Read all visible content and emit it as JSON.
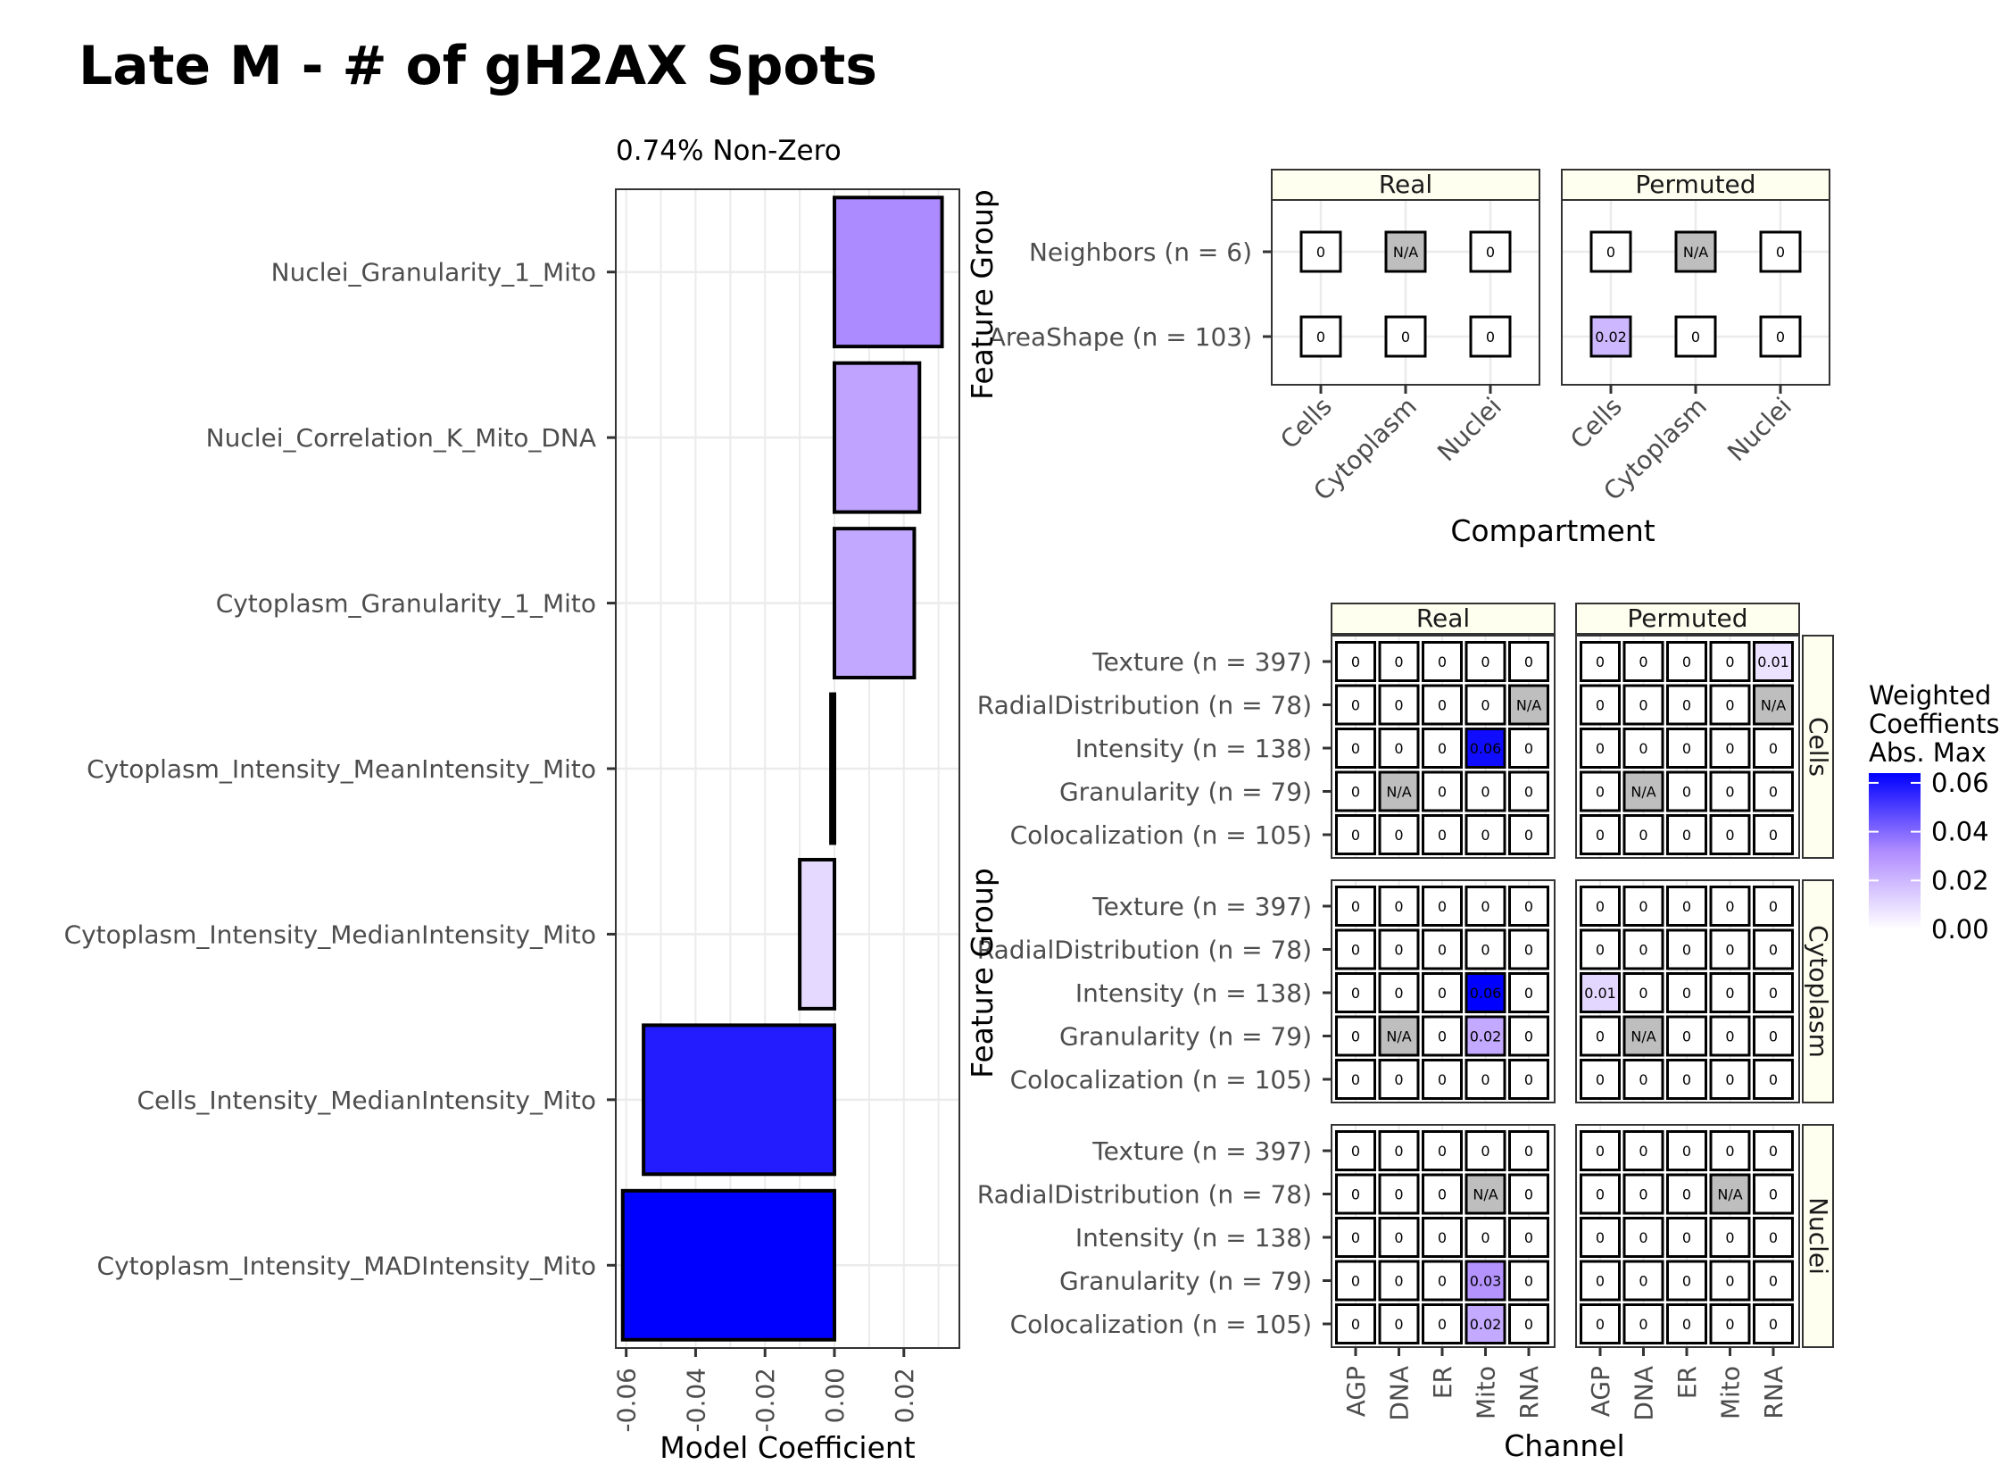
{
  "title": "Late M - # of gH2AX Spots",
  "colors": {
    "low": "#ffffff",
    "high": "#0000ff",
    "na": "#bebebe",
    "strip_bg": "#fffff0"
  },
  "chart_data": [
    {
      "type": "bar",
      "subtitle": "0.74% Non-Zero",
      "xlabel": "Model Coefficient",
      "orientation": "horizontal",
      "xlim": [
        -0.063,
        0.036
      ],
      "xticks": [
        -0.06,
        -0.04,
        -0.02,
        0.0,
        0.02
      ],
      "xtick_labels": [
        "-0.06",
        "-0.04",
        "-0.02",
        "0.00",
        "0.02"
      ],
      "categories": [
        "Nuclei_Granularity_1_Mito",
        "Nuclei_Correlation_K_Mito_DNA",
        "Cytoplasm_Granularity_1_Mito",
        "Cytoplasm_Intensity_MeanIntensity_Mito",
        "Cytoplasm_Intensity_MedianIntensity_Mito",
        "Cells_Intensity_MedianIntensity_Mito",
        "Cytoplasm_Intensity_MADIntensity_Mito"
      ],
      "values": [
        0.031,
        0.0245,
        0.023,
        -0.001,
        -0.01,
        -0.055,
        -0.061
      ],
      "color_max": 0.061
    },
    {
      "type": "heatmap",
      "xlabel": "Compartment",
      "ylabel": "Feature Group",
      "facets": [
        "Real",
        "Permuted"
      ],
      "columns": [
        "Cells",
        "Cytoplasm",
        "Nuclei"
      ],
      "rows": [
        "Neighbors (n = 6)",
        "AreaShape (n = 103)"
      ],
      "values": {
        "Real": [
          [
            "0",
            "N/A",
            "0"
          ],
          [
            "0",
            "0",
            "0"
          ]
        ],
        "Permuted": [
          [
            "0",
            "N/A",
            "0"
          ],
          [
            "0.02",
            "0",
            "0"
          ]
        ]
      }
    },
    {
      "type": "heatmap",
      "xlabel": "Channel",
      "ylabel": "Feature Group",
      "facets": [
        "Real",
        "Permuted"
      ],
      "row_facets": [
        "Cells",
        "Cytoplasm",
        "Nuclei"
      ],
      "columns": [
        "AGP",
        "DNA",
        "ER",
        "Mito",
        "RNA"
      ],
      "rows": [
        "Texture (n = 397)",
        "RadialDistribution (n = 78)",
        "Intensity (n = 138)",
        "Granularity (n = 79)",
        "Colocalization (n = 105)"
      ],
      "values": {
        "Cells": {
          "Real": [
            [
              "0",
              "0",
              "0",
              "0",
              "0"
            ],
            [
              "0",
              "0",
              "0",
              "0",
              "N/A"
            ],
            [
              "0",
              "0",
              "0",
              "0.06",
              "0"
            ],
            [
              "0",
              "N/A",
              "0",
              "0",
              "0"
            ],
            [
              "0",
              "0",
              "0",
              "0",
              "0"
            ]
          ],
          "Permuted": [
            [
              "0",
              "0",
              "0",
              "0",
              "0.01"
            ],
            [
              "0",
              "0",
              "0",
              "0",
              "N/A"
            ],
            [
              "0",
              "0",
              "0",
              "0",
              "0"
            ],
            [
              "0",
              "N/A",
              "0",
              "0",
              "0"
            ],
            [
              "0",
              "0",
              "0",
              "0",
              "0"
            ]
          ]
        },
        "Cytoplasm": {
          "Real": [
            [
              "0",
              "0",
              "0",
              "0",
              "0"
            ],
            [
              "0",
              "0",
              "0",
              "0",
              "0"
            ],
            [
              "0",
              "0",
              "0",
              "0.06",
              "0"
            ],
            [
              "0",
              "N/A",
              "0",
              "0.02",
              "0"
            ],
            [
              "0",
              "0",
              "0",
              "0",
              "0"
            ]
          ],
          "Permuted": [
            [
              "0",
              "0",
              "0",
              "0",
              "0"
            ],
            [
              "0",
              "0",
              "0",
              "0",
              "0"
            ],
            [
              "0.01",
              "0",
              "0",
              "0",
              "0"
            ],
            [
              "0",
              "N/A",
              "0",
              "0",
              "0"
            ],
            [
              "0",
              "0",
              "0",
              "0",
              "0"
            ]
          ]
        },
        "Nuclei": {
          "Real": [
            [
              "0",
              "0",
              "0",
              "0",
              "0"
            ],
            [
              "0",
              "0",
              "0",
              "N/A",
              "0"
            ],
            [
              "0",
              "0",
              "0",
              "0",
              "0"
            ],
            [
              "0",
              "0",
              "0",
              "0.03",
              "0"
            ],
            [
              "0",
              "0",
              "0",
              "0.02",
              "0"
            ]
          ],
          "Permuted": [
            [
              "0",
              "0",
              "0",
              "0",
              "0"
            ],
            [
              "0",
              "0",
              "0",
              "N/A",
              "0"
            ],
            [
              "0",
              "0",
              "0",
              "0",
              "0"
            ],
            [
              "0",
              "0",
              "0",
              "0",
              "0"
            ],
            [
              "0",
              "0",
              "0",
              "0",
              "0"
            ]
          ]
        }
      },
      "fill_values": {
        "Cells": {
          "Real": {
            "2,3": 0.061
          },
          "Permuted": {
            "0,4": 0.008
          }
        },
        "Cytoplasm": {
          "Real": {
            "2,3": 0.064,
            "3,3": 0.024
          },
          "Permuted": {
            "2,0": 0.011
          }
        },
        "Nuclei": {
          "Real": {
            "3,3": 0.03,
            "4,3": 0.024
          },
          "Permuted": {}
        }
      },
      "permuted_small_fills": {
        "AreaShape (n = 103)|Cells": 0.02
      }
    }
  ],
  "legend": {
    "title_lines": [
      "Weighted",
      "Coeffients",
      "Abs. Max"
    ],
    "ticks": [
      0.06,
      0.04,
      0.02,
      0.0
    ],
    "tick_labels": [
      "0.06",
      "0.04",
      "0.02",
      "0.00"
    ],
    "range": [
      0,
      0.064
    ]
  }
}
